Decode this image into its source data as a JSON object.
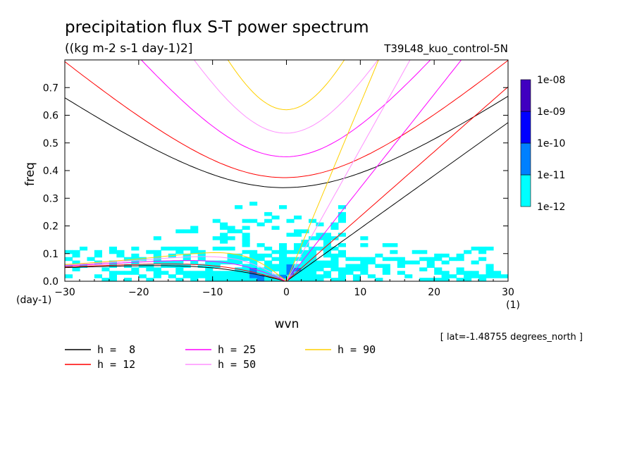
{
  "chart_data": {
    "type": "heatmap",
    "title": "precipitation flux S-T power spectrum",
    "subtitle": "((kg m-2 s-1 day-1)2]",
    "experiment": "T39L48_kuo_control-5N",
    "xlabel": "wvn",
    "ylabel": "freq",
    "x_unit": "(1)",
    "y_unit": "(day-1)",
    "xlim": [
      -30,
      30
    ],
    "ylim": [
      0,
      0.8
    ],
    "x_ticks": [
      -30,
      -20,
      -10,
      0,
      10,
      20,
      30
    ],
    "y_ticks": [
      0.0,
      0.1,
      0.2,
      0.3,
      0.4,
      0.5,
      0.6,
      0.7
    ],
    "annotation": "[ lat=-1.48755 degrees_north ]",
    "colorbar": {
      "levels": [
        "1e-12",
        "1e-11",
        "1e-10",
        "1e-09",
        "1e-08"
      ],
      "colors": [
        "#00ffff",
        "#0080ff",
        "#0000ff",
        "#4000c0"
      ]
    },
    "grid": false,
    "dispersion_curves": [
      {
        "label": "h =  8",
        "h": 8,
        "color": "#000000"
      },
      {
        "label": "h = 12",
        "h": 12,
        "color": "#ff0000"
      },
      {
        "label": "h = 25",
        "h": 25,
        "color": "#ff00ff"
      },
      {
        "label": "h = 50",
        "h": 50,
        "color": "#ff90ff"
      },
      {
        "label": "h = 90",
        "h": 90,
        "color": "#ffd000"
      }
    ]
  }
}
